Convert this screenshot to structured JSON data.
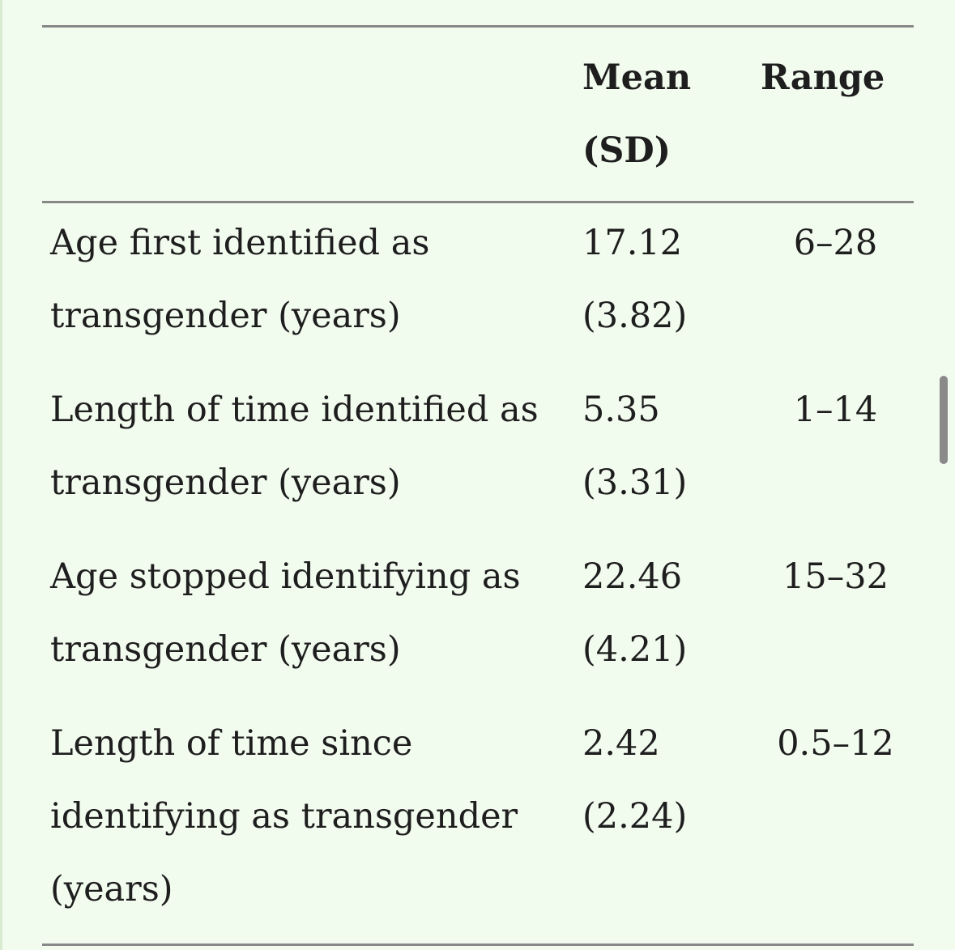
{
  "table": {
    "columns": [
      "",
      "Mean (SD)",
      "Range"
    ],
    "header": {
      "label": "",
      "mean": "Mean (SD)",
      "range": "Range"
    },
    "rows": [
      {
        "label": "Age first identified as transgender (years)",
        "mean": "17.12 (3.82)",
        "range": "6–28"
      },
      {
        "label": "Length of time identified as transgender (years)",
        "mean": "5.35 (3.31)",
        "range": "1–14"
      },
      {
        "label": "Age stopped identifying as transgender (years)",
        "mean": "22.46 (4.21)",
        "range": "15–32"
      },
      {
        "label": "Length of time since identifying as transgender (years)",
        "mean": "2.42 (2.24)",
        "range": "0.5–12"
      }
    ]
  },
  "colors": {
    "background": "#f1fbee",
    "rule": "#888888",
    "text": "#1e1e1e",
    "scrollbar": "#8a8a8a"
  }
}
